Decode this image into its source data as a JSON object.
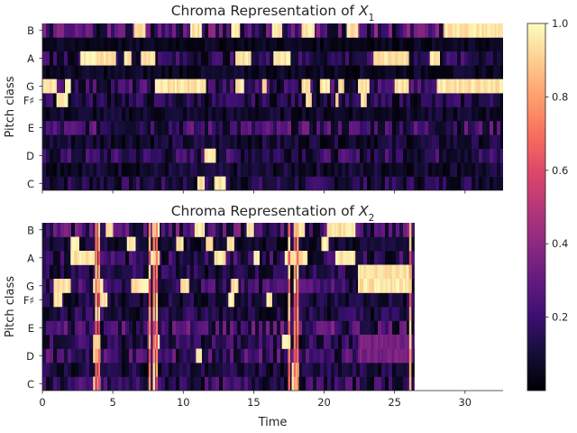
{
  "figure": {
    "background": "#ffffff"
  },
  "chart_data": [
    {
      "type": "heatmap",
      "title_text": "Chroma Representation of ",
      "title_var": "X",
      "title_sub": "1",
      "ylabel": "Pitch class",
      "xlabel": "",
      "xlim": [
        0,
        32.7
      ],
      "xticks": [
        0,
        5,
        10,
        15,
        20,
        25,
        30
      ],
      "show_xtick_labels": false,
      "yticks": [
        {
          "pitch": 0,
          "label": "C"
        },
        {
          "pitch": 2,
          "label": "D"
        },
        {
          "pitch": 4,
          "label": "E"
        },
        {
          "pitch": 6,
          "label": "F♯"
        },
        {
          "pitch": 7,
          "label": "G"
        },
        {
          "pitch": 9,
          "label": "A"
        },
        {
          "pitch": 11,
          "label": "B"
        }
      ],
      "data_end": 32.7,
      "active_regions": [
        {
          "pitch": 11,
          "segments": [
            [
              6.5,
              7.3
            ],
            [
              10.5,
              11.3
            ],
            [
              13.4,
              14.0
            ],
            [
              16.3,
              17.0
            ],
            [
              18.4,
              19.3
            ],
            [
              21.6,
              22.4
            ],
            [
              28.5,
              32.7
            ]
          ]
        },
        {
          "pitch": 9,
          "segments": [
            [
              2.7,
              5.2
            ],
            [
              5.8,
              6.3
            ],
            [
              7.0,
              8.0
            ],
            [
              13.7,
              14.8
            ],
            [
              16.4,
              17.6
            ],
            [
              23.5,
              26.0
            ],
            [
              27.5,
              28.2
            ]
          ]
        },
        {
          "pitch": 7,
          "segments": [
            [
              0.0,
              1.0
            ],
            [
              1.6,
              2.0
            ],
            [
              8.0,
              10.8
            ],
            [
              10.8,
              11.6
            ],
            [
              13.7,
              14.3
            ],
            [
              15.6,
              15.9
            ],
            [
              18.4,
              19.0
            ],
            [
              19.7,
              20.4
            ],
            [
              21.0,
              21.4
            ],
            [
              22.4,
              23.2
            ],
            [
              25.0,
              26.0
            ],
            [
              28.0,
              32.7
            ]
          ]
        },
        {
          "pitch": 6,
          "segments": [
            [
              1.0,
              1.8
            ],
            [
              18.7,
              19.1
            ],
            [
              20.8,
              21.0
            ],
            [
              22.6,
              23.0
            ]
          ]
        },
        {
          "pitch": 2,
          "segments": [
            [
              11.5,
              12.3
            ]
          ]
        },
        {
          "pitch": 0,
          "segments": [
            [
              11.0,
              11.5
            ],
            [
              12.2,
              13.0
            ]
          ]
        }
      ],
      "background_levels": [
        0.12,
        0.08,
        0.15,
        0.09,
        0.18,
        0.07,
        0.12,
        0.16,
        0.06,
        0.14,
        0.05,
        0.22
      ]
    },
    {
      "type": "heatmap",
      "title_text": "Chroma Representation of ",
      "title_var": "X",
      "title_sub": "2",
      "ylabel": "Pitch class",
      "xlabel": "Time",
      "xlim": [
        0,
        32.7
      ],
      "xticks": [
        0,
        5,
        10,
        15,
        20,
        25,
        30
      ],
      "show_xtick_labels": true,
      "yticks": [
        {
          "pitch": 0,
          "label": "C"
        },
        {
          "pitch": 2,
          "label": "D"
        },
        {
          "pitch": 4,
          "label": "E"
        },
        {
          "pitch": 6,
          "label": "F♯"
        },
        {
          "pitch": 7,
          "label": "G"
        },
        {
          "pitch": 9,
          "label": "A"
        },
        {
          "pitch": 11,
          "label": "B"
        }
      ],
      "data_end": 26.4,
      "active_regions": [
        {
          "pitch": 11,
          "segments": [
            [
              4.5,
              5.0
            ],
            [
              7.8,
              8.3
            ],
            [
              10.8,
              11.5
            ],
            [
              14.5,
              15.0
            ],
            [
              18.0,
              18.6
            ],
            [
              20.2,
              22.2
            ]
          ]
        },
        {
          "pitch": 10,
          "segments": [
            [
              2.0,
              2.6
            ],
            [
              6.0,
              6.6
            ],
            [
              9.5,
              10.0
            ],
            [
              11.6,
              12.1
            ],
            [
              13.1,
              13.6
            ],
            [
              19.8,
              20.3
            ]
          ]
        },
        {
          "pitch": 9,
          "segments": [
            [
              2.0,
              3.7
            ],
            [
              7.6,
              8.3
            ],
            [
              12.2,
              13.0
            ],
            [
              15.0,
              15.4
            ],
            [
              17.2,
              18.8
            ],
            [
              20.8,
              22.2
            ]
          ]
        },
        {
          "pitch": 8,
          "segments": [
            [
              22.4,
              26.2
            ]
          ]
        },
        {
          "pitch": 7,
          "segments": [
            [
              0.8,
              2.0
            ],
            [
              3.6,
              4.3
            ],
            [
              6.3,
              7.6
            ],
            [
              9.8,
              10.4
            ],
            [
              13.4,
              13.9
            ],
            [
              22.4,
              26.2
            ]
          ]
        },
        {
          "pitch": 6,
          "segments": [
            [
              0.8,
              1.4
            ],
            [
              4.1,
              4.6
            ],
            [
              13.2,
              13.6
            ],
            [
              15.9,
              16.3
            ]
          ]
        },
        {
          "pitch": 3,
          "segments": [
            [
              3.6,
              4.1
            ],
            [
              7.9,
              8.3
            ],
            [
              17.0,
              17.6
            ]
          ]
        },
        {
          "pitch": 2,
          "segments": [
            [
              3.6,
              4.1
            ],
            [
              10.9,
              11.3
            ]
          ]
        },
        {
          "pitch": 1,
          "segments": [
            [
              17.7,
              18.2
            ]
          ]
        },
        {
          "pitch": 0,
          "segments": [
            [
              3.6,
              4.1
            ],
            [
              17.7,
              18.1
            ]
          ]
        }
      ],
      "hot_columns": [
        3.8,
        4.0,
        7.6,
        7.9,
        8.1,
        17.5,
        17.9,
        18.1,
        26.1
      ],
      "purple_regions": [
        {
          "pitch": 2,
          "segment": [
            22.4,
            26.2
          ]
        },
        {
          "pitch": 3,
          "segment": [
            22.4,
            26.2
          ]
        }
      ],
      "background_levels": [
        0.15,
        0.1,
        0.18,
        0.14,
        0.2,
        0.12,
        0.1,
        0.16,
        0.12,
        0.15,
        0.08,
        0.2
      ]
    }
  ],
  "colorbar": {
    "colormap": "magma",
    "range": [
      0,
      1
    ],
    "ticks": [
      {
        "value": 0.2,
        "label": "0.2"
      },
      {
        "value": 0.4,
        "label": "0.4"
      },
      {
        "value": 0.6,
        "label": "0.6"
      },
      {
        "value": 0.8,
        "label": "0.8"
      },
      {
        "value": 1.0,
        "label": "1.0"
      }
    ]
  }
}
